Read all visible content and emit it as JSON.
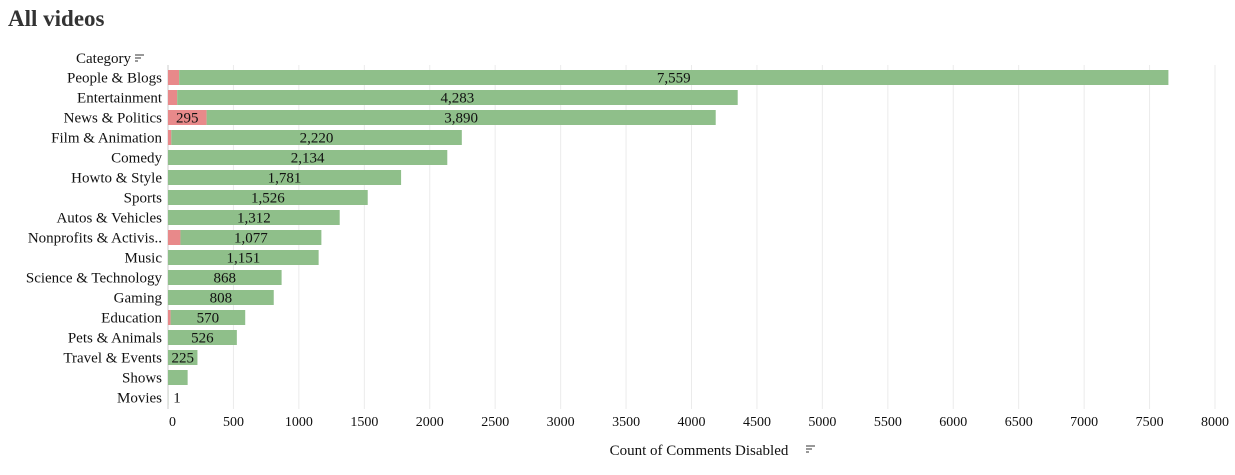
{
  "title": "All videos",
  "chart_data": {
    "type": "bar",
    "orientation": "horizontal",
    "stacked": true,
    "ylabel": "Category",
    "xlabel": "Count of Comments Disabled",
    "xlim": [
      0,
      8000
    ],
    "xticks": [
      0,
      500,
      1000,
      1500,
      2000,
      2500,
      3000,
      3500,
      4000,
      4500,
      5000,
      5500,
      6000,
      6500,
      7000,
      7500,
      8000
    ],
    "grid": true,
    "categories": [
      "People & Blogs",
      "Entertainment",
      "News & Politics",
      "Film & Animation",
      "Comedy",
      "Howto & Style",
      "Sports",
      "Autos & Vehicles",
      "Nonprofits & Activis..",
      "Music",
      "Science & Technology",
      "Gaming",
      "Education",
      "Pets & Animals",
      "Travel & Events",
      "Shows",
      "Movies"
    ],
    "series": [
      {
        "color": "#e8898a",
        "values": [
          85,
          70,
          295,
          25,
          0,
          0,
          0,
          0,
          95,
          0,
          0,
          0,
          20,
          0,
          0,
          0,
          0
        ],
        "labels": [
          "",
          "",
          "295",
          "",
          "",
          "",
          "",
          "",
          "",
          "",
          "",
          "",
          "",
          "",
          "",
          "",
          ""
        ]
      },
      {
        "color": "#8fbf8a",
        "values": [
          7559,
          4283,
          3890,
          2220,
          2134,
          1781,
          1526,
          1312,
          1077,
          1151,
          868,
          808,
          570,
          526,
          225,
          150,
          1
        ],
        "labels": [
          "7,559",
          "4,283",
          "3,890",
          "2,220",
          "2,134",
          "1,781",
          "1,526",
          "1,312",
          "1,077",
          "1,151",
          "868",
          "808",
          "570",
          "526",
          "225",
          "",
          "1"
        ]
      }
    ]
  }
}
